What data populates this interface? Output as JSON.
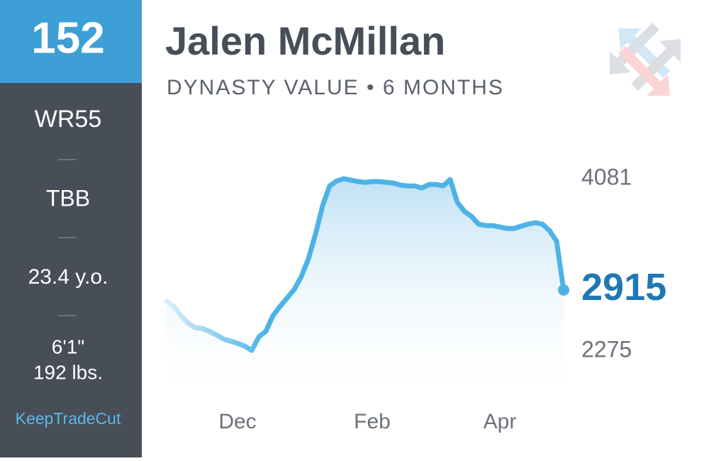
{
  "sidebar": {
    "rank": "152",
    "position_rank": "WR55",
    "team": "TBB",
    "age": "23.4 y.o.",
    "height": "6'1\"",
    "weight": "192 lbs.",
    "brand": "KeepTradeCut"
  },
  "chart_data": {
    "type": "line",
    "title": "Jalen McMillan",
    "subtitle": "DYNASTY VALUE • 6 MONTHS",
    "categories": [
      null,
      null,
      null,
      null,
      null,
      null,
      null,
      null,
      null,
      null,
      "Dec",
      null,
      null,
      null,
      null,
      null,
      null,
      null,
      null,
      null,
      null,
      null,
      null,
      null,
      null,
      null,
      null,
      null,
      null,
      "Feb",
      null,
      null,
      null,
      null,
      null,
      null,
      null,
      null,
      null,
      null,
      null,
      null,
      null,
      null,
      null,
      null,
      null,
      "Apr",
      null,
      null,
      null,
      null,
      null,
      null,
      null,
      null,
      null
    ],
    "series": [
      {
        "color": "#4db3e6",
        "values": [
          2795,
          2743,
          2646,
          2572,
          2520,
          2513,
          2483,
          2446,
          2401,
          2379,
          2357,
          2327,
          2282,
          2424,
          2483,
          2646,
          2743,
          2832,
          2921,
          3055,
          3241,
          3501,
          3798,
          4006,
          4058,
          4081,
          4066,
          4051,
          4043,
          4051,
          4051,
          4043,
          4036,
          4014,
          4006,
          4006,
          3984,
          4021,
          4021,
          4006,
          4073,
          3835,
          3739,
          3687,
          3605,
          3590,
          3590,
          3575,
          3560,
          3560,
          3583,
          3605,
          3620,
          3605,
          3538,
          3427,
          2915
        ]
      }
    ],
    "ylim": [
      2275,
      4081
    ],
    "yticks": [
      2275,
      4081
    ]
  }
}
